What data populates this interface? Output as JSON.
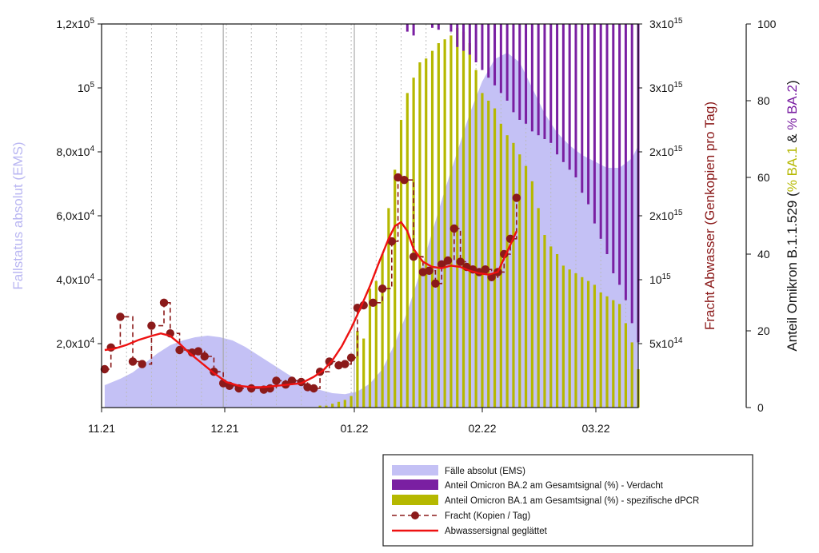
{
  "chart_data": {
    "type": "combo",
    "x_tick_labels": [
      "11.21",
      "12.21",
      "01.22",
      "02.22",
      "03.22"
    ],
    "y_left": {
      "label": "Fallstatus absolut (EMS)",
      "color": "#b9b6f2",
      "ylim": [
        0,
        120000
      ],
      "ticks": [
        {
          "v": 20000,
          "t": "2,0x10",
          "sup": "4"
        },
        {
          "v": 40000,
          "t": "4,0x10",
          "sup": "4"
        },
        {
          "v": 60000,
          "t": "6,0x10",
          "sup": "4"
        },
        {
          "v": 80000,
          "t": "8,0x10",
          "sup": "4"
        },
        {
          "v": 100000,
          "t": "10",
          "sup": "5"
        },
        {
          "v": 120000,
          "t": "1,2x10",
          "sup": "5"
        }
      ]
    },
    "y_mid": {
      "label": "Fracht Abwasser (Genkopien pro Tag)",
      "color": "#8b1a1a",
      "ticks": [
        {
          "v": 0.5,
          "t": "5x10",
          "sup": "14"
        },
        {
          "v": 1.0,
          "t": "10",
          "sup": "15"
        },
        {
          "v": 1.5,
          "t": "2x10",
          "sup": "15"
        },
        {
          "v": 2.0,
          "t": "2x10",
          "sup": "15"
        },
        {
          "v": 2.5,
          "t": "3x10",
          "sup": "15"
        },
        {
          "v": 3.0,
          "t": "3x10",
          "sup": "15"
        }
      ]
    },
    "y_right": {
      "label_parts": [
        {
          "text": "Anteil Omikron B.1.1.529 (",
          "color": "#111111"
        },
        {
          "text": "% BA.1",
          "color": "#b5b800"
        },
        {
          "text": " & ",
          "color": "#111111"
        },
        {
          "text": "% BA.2",
          "color": "#7a1fa2"
        },
        {
          "text": ")",
          "color": "#111111"
        }
      ],
      "ylim": [
        0,
        100
      ],
      "ticks": [
        "0",
        "20",
        "40",
        "60",
        "80",
        "100"
      ]
    },
    "series": [
      {
        "name": "Fälle absolut (EMS)",
        "kind": "area",
        "color": "#c4c1f5",
        "points": [
          [
            0.5,
            7000
          ],
          [
            3,
            9000
          ],
          [
            5,
            11000
          ],
          [
            7,
            14000
          ],
          [
            9,
            17000
          ],
          [
            11,
            19500
          ],
          [
            13,
            21000
          ],
          [
            15,
            22000
          ],
          [
            17,
            22500
          ],
          [
            19,
            22000
          ],
          [
            21,
            21000
          ],
          [
            23,
            19000
          ],
          [
            25,
            16500
          ],
          [
            27,
            14000
          ],
          [
            29,
            11500
          ],
          [
            31,
            9000
          ],
          [
            33,
            7000
          ],
          [
            35,
            5500
          ],
          [
            37,
            4500
          ],
          [
            39,
            4200
          ],
          [
            41,
            5000
          ],
          [
            43,
            7500
          ],
          [
            45,
            12000
          ],
          [
            47,
            20000
          ],
          [
            49,
            30000
          ],
          [
            51,
            42000
          ],
          [
            53,
            55000
          ],
          [
            55,
            68000
          ],
          [
            57,
            80000
          ],
          [
            59,
            92000
          ],
          [
            61,
            102000
          ],
          [
            63,
            109000
          ],
          [
            65,
            111000
          ],
          [
            67,
            108000
          ],
          [
            69,
            100000
          ],
          [
            71,
            92000
          ],
          [
            73,
            86000
          ],
          [
            75,
            82000
          ],
          [
            77,
            79000
          ],
          [
            79,
            77000
          ],
          [
            81,
            75000
          ],
          [
            83,
            75000
          ],
          [
            85,
            78000
          ],
          [
            86,
            82000
          ]
        ]
      },
      {
        "name": "Anteil Omicron  BA.1 am Gesamtsignal (%) - spezifische dPCR",
        "kind": "bars",
        "color": "#b5b800",
        "bars": [
          [
            35,
            0.5
          ],
          [
            36,
            0.5
          ],
          [
            37,
            1
          ],
          [
            38,
            1.5
          ],
          [
            39,
            2
          ],
          [
            40,
            3
          ],
          [
            41,
            20
          ],
          [
            42,
            18
          ],
          [
            43,
            31
          ],
          [
            44,
            33
          ],
          [
            45,
            40
          ],
          [
            46,
            52
          ],
          [
            47,
            62
          ],
          [
            48,
            75
          ],
          [
            49,
            82
          ],
          [
            50,
            86
          ],
          [
            51,
            90
          ],
          [
            52,
            91
          ],
          [
            53,
            93
          ],
          [
            54,
            95
          ],
          [
            55,
            96
          ],
          [
            56,
            97
          ],
          [
            57,
            99
          ],
          [
            58,
            98
          ],
          [
            59,
            95
          ],
          [
            60,
            88
          ],
          [
            61,
            82
          ],
          [
            62,
            80
          ],
          [
            63,
            78
          ],
          [
            64,
            74
          ],
          [
            65,
            71
          ],
          [
            66,
            69
          ],
          [
            67,
            66
          ],
          [
            68,
            63
          ],
          [
            69,
            59
          ],
          [
            70,
            52
          ],
          [
            71,
            45
          ],
          [
            72,
            42
          ],
          [
            73,
            40
          ],
          [
            74,
            37
          ],
          [
            75,
            36
          ],
          [
            76,
            35
          ],
          [
            77,
            34
          ],
          [
            78,
            33
          ],
          [
            79,
            32
          ],
          [
            80,
            30
          ],
          [
            81,
            29
          ],
          [
            82,
            28
          ],
          [
            83,
            27
          ],
          [
            84,
            22
          ],
          [
            85,
            17
          ],
          [
            86,
            10
          ]
        ]
      },
      {
        "name": "Anteil Omicron  BA.2 am Gesamtsignal (%) - Verdacht",
        "kind": "bars_top",
        "color": "#7a1fa2",
        "bars": [
          [
            49,
            2
          ],
          [
            50,
            3
          ],
          [
            53,
            1
          ],
          [
            54,
            1.5
          ],
          [
            56,
            2
          ],
          [
            57,
            6
          ],
          [
            58,
            7
          ],
          [
            59,
            8
          ],
          [
            60,
            10
          ],
          [
            61,
            12
          ],
          [
            62,
            14
          ],
          [
            63,
            16
          ],
          [
            64,
            18
          ],
          [
            65,
            20
          ],
          [
            66,
            23
          ],
          [
            67,
            25
          ],
          [
            68,
            26
          ],
          [
            69,
            28
          ],
          [
            70,
            29
          ],
          [
            71,
            30
          ],
          [
            72,
            31
          ],
          [
            73,
            34
          ],
          [
            74,
            36
          ],
          [
            75,
            38
          ],
          [
            76,
            40
          ],
          [
            77,
            44
          ],
          [
            78,
            47
          ],
          [
            79,
            52
          ],
          [
            80,
            56
          ],
          [
            81,
            60
          ],
          [
            82,
            65
          ],
          [
            83,
            68
          ],
          [
            84,
            72
          ],
          [
            85,
            78
          ],
          [
            86,
            83
          ]
        ]
      },
      {
        "name": "Fracht (Kopien / Tag)",
        "kind": "dashed_markers",
        "color": "#8b1a1a",
        "points": [
          [
            0.5,
            0.3
          ],
          [
            1.5,
            0.47
          ],
          [
            3,
            0.71
          ],
          [
            5,
            0.36
          ],
          [
            6.5,
            0.34
          ],
          [
            8,
            0.64
          ],
          [
            10,
            0.82
          ],
          [
            11,
            0.58
          ],
          [
            12.5,
            0.45
          ],
          [
            14.5,
            0.43
          ],
          [
            15.5,
            0.44
          ],
          [
            16.5,
            0.4
          ],
          [
            18,
            0.28
          ],
          [
            19.5,
            0.19
          ],
          [
            20.5,
            0.17
          ],
          [
            22,
            0.15
          ],
          [
            24,
            0.15
          ],
          [
            26,
            0.14
          ],
          [
            27,
            0.15
          ],
          [
            28,
            0.21
          ],
          [
            29.5,
            0.18
          ],
          [
            30.5,
            0.21
          ],
          [
            32,
            0.2
          ],
          [
            33,
            0.16
          ],
          [
            34,
            0.15
          ],
          [
            35,
            0.28
          ],
          [
            36.5,
            0.36
          ],
          [
            38,
            0.33
          ],
          [
            39,
            0.34
          ],
          [
            40,
            0.39
          ],
          [
            41,
            0.78
          ],
          [
            42,
            0.8
          ],
          [
            43.5,
            0.82
          ],
          [
            45,
            0.93
          ],
          [
            46.5,
            1.3
          ],
          [
            47.5,
            1.8
          ],
          [
            48.5,
            1.78
          ],
          [
            50,
            1.18
          ],
          [
            51.5,
            1.06
          ],
          [
            52.5,
            1.07
          ],
          [
            53.5,
            0.97
          ],
          [
            54.5,
            1.12
          ],
          [
            55.5,
            1.15
          ],
          [
            56.5,
            1.4
          ],
          [
            57.5,
            1.14
          ],
          [
            58.5,
            1.1
          ],
          [
            59.5,
            1.08
          ],
          [
            60.5,
            1.06
          ],
          [
            61.5,
            1.08
          ],
          [
            62.5,
            1.02
          ],
          [
            63.5,
            1.06
          ],
          [
            64.5,
            1.2
          ],
          [
            65.5,
            1.32
          ],
          [
            66.5,
            1.64
          ]
        ]
      },
      {
        "name": "Abwassersignal geglättet",
        "kind": "line",
        "color": "#ee1111",
        "points": [
          [
            0.5,
            0.45
          ],
          [
            2,
            0.46
          ],
          [
            4,
            0.49
          ],
          [
            6,
            0.53
          ],
          [
            8,
            0.56
          ],
          [
            9.5,
            0.58
          ],
          [
            11,
            0.56
          ],
          [
            12.5,
            0.5
          ],
          [
            14,
            0.43
          ],
          [
            16,
            0.35
          ],
          [
            18,
            0.27
          ],
          [
            20,
            0.2
          ],
          [
            22,
            0.17
          ],
          [
            24,
            0.16
          ],
          [
            26,
            0.16
          ],
          [
            28,
            0.17
          ],
          [
            30,
            0.18
          ],
          [
            32,
            0.19
          ],
          [
            34,
            0.24
          ],
          [
            35.5,
            0.29
          ],
          [
            37,
            0.37
          ],
          [
            38.5,
            0.48
          ],
          [
            40,
            0.62
          ],
          [
            41.5,
            0.78
          ],
          [
            43,
            0.95
          ],
          [
            44.5,
            1.14
          ],
          [
            46,
            1.32
          ],
          [
            47,
            1.42
          ],
          [
            48,
            1.45
          ],
          [
            49,
            1.38
          ],
          [
            50,
            1.24
          ],
          [
            51.5,
            1.14
          ],
          [
            53,
            1.1
          ],
          [
            54.5,
            1.09
          ],
          [
            56,
            1.11
          ],
          [
            57.5,
            1.1
          ],
          [
            59,
            1.07
          ],
          [
            60.5,
            1.05
          ],
          [
            62,
            1.04
          ],
          [
            63.5,
            1.06
          ],
          [
            65,
            1.22
          ],
          [
            66.5,
            1.38
          ]
        ]
      }
    ],
    "legend_entries": [
      "Fälle absolut (EMS)",
      "Anteil Omicron  BA.2 am Gesamtsignal (%) - Verdacht",
      "Anteil Omicron  BA.1 am Gesamtsignal (%) - spezifische dPCR",
      "Fracht (Kopien / Tag)",
      "Abwassersignal geglättet"
    ],
    "legend_placement": "bottom-right"
  }
}
